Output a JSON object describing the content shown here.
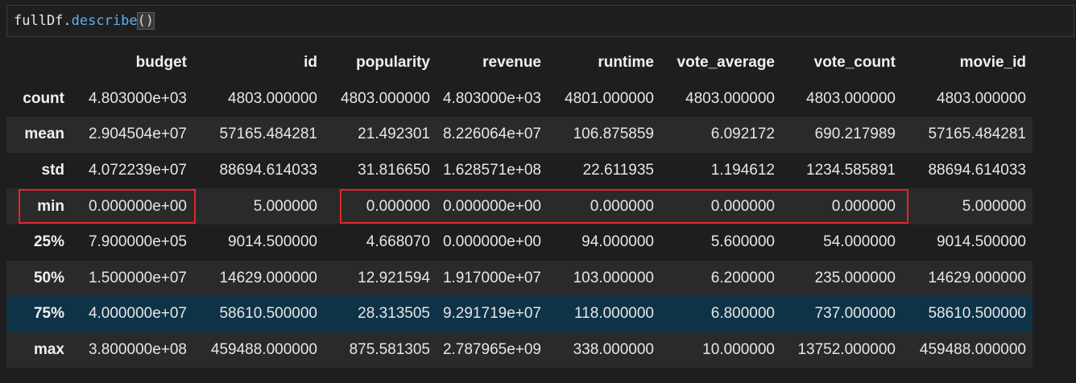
{
  "cell": {
    "code_var": "fullDf",
    "code_dot": ".",
    "code_fn": "describe",
    "code_parens": "()"
  },
  "table": {
    "columns": [
      "",
      "budget",
      "id",
      "popularity",
      "revenue",
      "runtime",
      "vote_average",
      "vote_count",
      "movie_id"
    ],
    "rows": [
      {
        "label": "count",
        "values": [
          "4.803000e+03",
          "4803.000000",
          "4803.000000",
          "4.803000e+03",
          "4801.000000",
          "4803.000000",
          "4803.000000",
          "4803.000000"
        ]
      },
      {
        "label": "mean",
        "values": [
          "2.904504e+07",
          "57165.484281",
          "21.492301",
          "8.226064e+07",
          "106.875859",
          "6.092172",
          "690.217989",
          "57165.484281"
        ]
      },
      {
        "label": "std",
        "values": [
          "4.072239e+07",
          "88694.614033",
          "31.816650",
          "1.628571e+08",
          "22.611935",
          "1.194612",
          "1234.585891",
          "88694.614033"
        ]
      },
      {
        "label": "min",
        "values": [
          "0.000000e+00",
          "5.000000",
          "0.000000",
          "0.000000e+00",
          "0.000000",
          "0.000000",
          "0.000000",
          "5.000000"
        ]
      },
      {
        "label": "25%",
        "values": [
          "7.900000e+05",
          "9014.500000",
          "4.668070",
          "0.000000e+00",
          "94.000000",
          "5.600000",
          "54.000000",
          "9014.500000"
        ]
      },
      {
        "label": "50%",
        "values": [
          "1.500000e+07",
          "14629.000000",
          "12.921594",
          "1.917000e+07",
          "103.000000",
          "6.200000",
          "235.000000",
          "14629.000000"
        ]
      },
      {
        "label": "75%",
        "values": [
          "4.000000e+07",
          "58610.500000",
          "28.313505",
          "9.291719e+07",
          "118.000000",
          "6.800000",
          "737.000000",
          "58610.500000"
        ]
      },
      {
        "label": "max",
        "values": [
          "3.800000e+08",
          "459488.000000",
          "875.581305",
          "2.787965e+09",
          "338.000000",
          "10.000000",
          "13752.000000",
          "459488.000000"
        ]
      }
    ]
  },
  "colors": {
    "background": "#1e1e1e",
    "row_alt": "#2a2a2a",
    "row_hover": "#0e3347",
    "highlight_box": "#e0262b",
    "function_token": "#61aeee"
  }
}
